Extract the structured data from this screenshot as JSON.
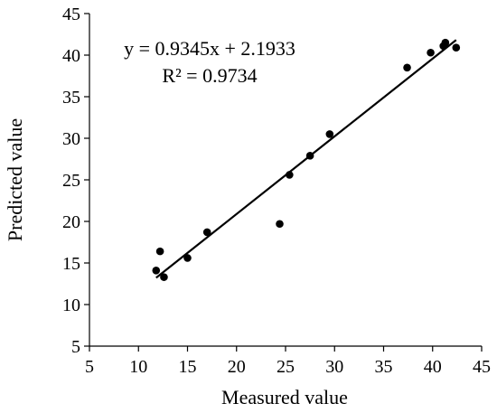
{
  "chart_data": {
    "type": "scatter",
    "xlabel": "Measured value",
    "ylabel": "Predicted value",
    "xlim": [
      5,
      45
    ],
    "ylim": [
      5,
      45
    ],
    "xticks": [
      5,
      10,
      15,
      20,
      25,
      30,
      35,
      40,
      45
    ],
    "yticks": [
      5,
      10,
      15,
      20,
      25,
      30,
      35,
      40,
      45
    ],
    "grid": false,
    "points": [
      {
        "x": 11.8,
        "y": 14.1
      },
      {
        "x": 12.2,
        "y": 16.4
      },
      {
        "x": 12.6,
        "y": 13.3
      },
      {
        "x": 15.0,
        "y": 15.6
      },
      {
        "x": 17.0,
        "y": 18.7
      },
      {
        "x": 24.4,
        "y": 19.7
      },
      {
        "x": 25.4,
        "y": 25.6
      },
      {
        "x": 27.5,
        "y": 27.9
      },
      {
        "x": 29.5,
        "y": 30.5
      },
      {
        "x": 37.4,
        "y": 38.5
      },
      {
        "x": 39.8,
        "y": 40.3
      },
      {
        "x": 41.1,
        "y": 41.1
      },
      {
        "x": 41.3,
        "y": 41.5
      },
      {
        "x": 42.4,
        "y": 40.9
      }
    ],
    "trendline": {
      "slope": 0.9345,
      "intercept": 2.1933,
      "x_range": [
        11.8,
        42.4
      ]
    },
    "annotations": {
      "equation": "y = 0.9345x + 2.1933",
      "r_squared": "R² = 0.9734"
    },
    "colors": {
      "points": "#000000",
      "trendline": "#000000",
      "axes": "#000000"
    }
  }
}
